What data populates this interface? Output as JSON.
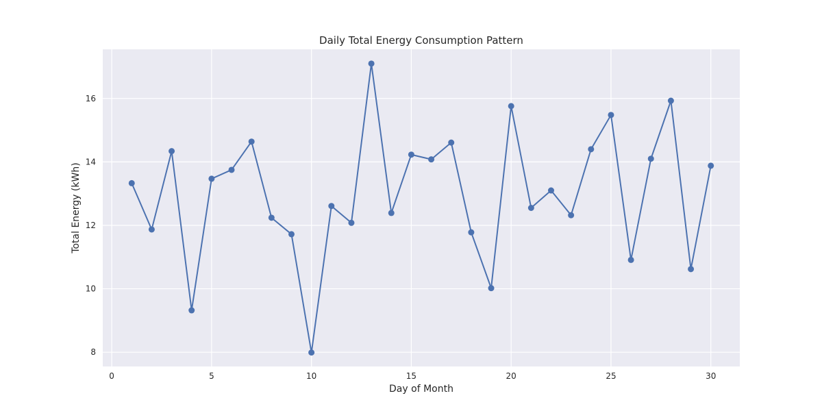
{
  "chart_data": {
    "type": "line",
    "title": "Daily Total Energy Consumption Pattern",
    "xlabel": "Day of Month",
    "ylabel": "Total Energy (kWh)",
    "xlim": [
      -0.45,
      31.45
    ],
    "ylim": [
      7.55,
      17.55
    ],
    "xticks": [
      0,
      5,
      10,
      15,
      20,
      25,
      30
    ],
    "yticks": [
      8,
      10,
      12,
      14,
      16
    ],
    "grid": true,
    "series": [
      {
        "color": "#4c72b0",
        "marker": "circle",
        "x": [
          1,
          2,
          3,
          4,
          5,
          6,
          7,
          8,
          9,
          10,
          11,
          12,
          13,
          14,
          15,
          16,
          17,
          18,
          19,
          20,
          21,
          22,
          23,
          24,
          25,
          26,
          27,
          28,
          29,
          30
        ],
        "y": [
          13.33,
          11.87,
          14.34,
          9.32,
          13.47,
          13.75,
          14.64,
          12.24,
          11.72,
          7.99,
          12.61,
          12.08,
          17.1,
          12.39,
          14.23,
          14.08,
          14.61,
          11.78,
          10.02,
          15.76,
          12.55,
          13.1,
          12.32,
          14.4,
          15.48,
          10.91,
          14.1,
          15.93,
          10.62,
          13.88
        ]
      }
    ],
    "colors": {
      "plot_background": "#eaeaf2",
      "grid": "#ffffff",
      "text": "#262626"
    }
  }
}
